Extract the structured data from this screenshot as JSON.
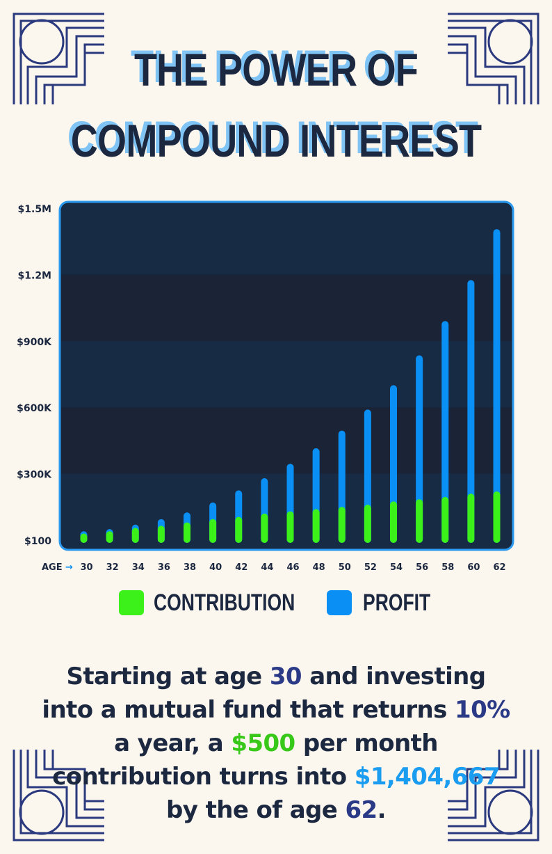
{
  "title": {
    "line1": "THE POWER OF",
    "line2": "COMPOUND INTEREST"
  },
  "colors": {
    "background": "#fbf6ee",
    "navy": "#1c2840",
    "contribution": "#3cf019",
    "profit": "#0a8ff5",
    "panel": "#182b44",
    "panel_stripe": "#1a2436",
    "panel_border": "#2a9af0",
    "ornament": "#2b3a7e"
  },
  "chart_data": {
    "type": "bar",
    "stacked": true,
    "x_label": "AGE",
    "x_arrow": "→",
    "categories": [
      "30",
      "32",
      "34",
      "36",
      "38",
      "40",
      "42",
      "44",
      "46",
      "48",
      "50",
      "52",
      "54",
      "56",
      "58",
      "60",
      "62"
    ],
    "y_tick_labels": [
      "$100",
      "$300K",
      "$600K",
      "$900K",
      "$1.2M",
      "$1.5M"
    ],
    "y_tick_values": [
      100,
      300000,
      600000,
      900000,
      1200000,
      1500000
    ],
    "ylim": [
      100,
      1500000
    ],
    "series": [
      {
        "name": "CONTRIBUTION",
        "values": [
          30000,
          40000,
          55000,
          65000,
          80000,
          95000,
          105000,
          120000,
          130000,
          140000,
          150000,
          160000,
          175000,
          185000,
          195000,
          210000,
          220000
        ]
      },
      {
        "name": "PROFIT",
        "values": [
          10000,
          10000,
          15000,
          30000,
          45000,
          75000,
          120000,
          160000,
          215000,
          275000,
          345000,
          430000,
          525000,
          650000,
          795000,
          965000,
          1185000
        ]
      }
    ],
    "legend": [
      "CONTRIBUTION",
      "PROFIT"
    ],
    "legend_position": "bottom"
  },
  "caption": {
    "p1": "Starting at age ",
    "age_start": "30",
    "p2": " and investing into a mutual fund that returns ",
    "rate": "10%",
    "p3": " a year, a ",
    "monthly": "$500",
    "p4": " per month contribution turns into ",
    "total": "$1,404,667",
    "p5": " by the of age ",
    "age_end": "62",
    "p6": "."
  }
}
